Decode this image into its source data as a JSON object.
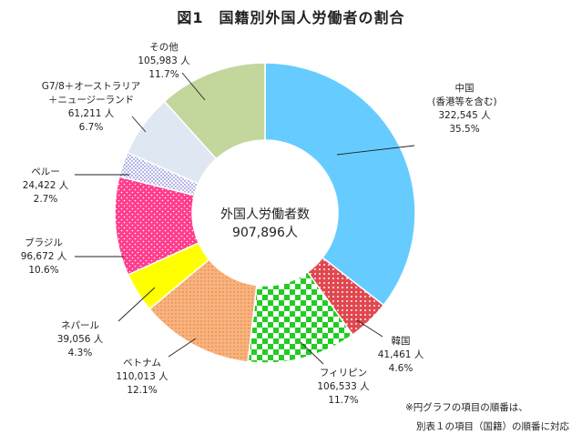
{
  "title": "図1　国籍別外国人労働者の割合",
  "center": {
    "line1": "外国人労働者数",
    "line2": "907,896人"
  },
  "notes": [
    "※円グラフの項目の順番は、",
    "別表１の項目（国籍）の順番に対応"
  ],
  "chart_data": {
    "type": "pie",
    "donut": true,
    "total": 907896,
    "slices": [
      {
        "name": "中国",
        "name2": "(香港等を含む)",
        "value": 322545,
        "value_label": "322,545 人",
        "pct": 35.5,
        "pct_label": "35.5%",
        "color": "#66ccff",
        "pattern": "solid"
      },
      {
        "name": "韓国",
        "value": 41461,
        "value_label": "41,461 人",
        "pct": 4.6,
        "pct_label": "4.6%",
        "color": "#e0484f",
        "pattern": "checks"
      },
      {
        "name": "フィリピン",
        "value": 106533,
        "value_label": "106,533 人",
        "pct": 11.7,
        "pct_label": "11.7%",
        "color": "#22cc22",
        "pattern": "checkerboard"
      },
      {
        "name": "ベトナム",
        "value": 110013,
        "value_label": "110,013 人",
        "pct": 12.1,
        "pct_label": "12.1%",
        "color": "#f9b37f",
        "pattern": "dots"
      },
      {
        "name": "ネパール",
        "value": 39056,
        "value_label": "39,056 人",
        "pct": 4.3,
        "pct_label": "4.3%",
        "color": "#ffff00",
        "pattern": "solid"
      },
      {
        "name": "ブラジル",
        "value": 96672,
        "value_label": "96,672 人",
        "pct": 10.6,
        "pct_label": "10.6%",
        "color": "#ff3d8c",
        "pattern": "dots"
      },
      {
        "name": "ペルー",
        "value": 24422,
        "value_label": "24,422 人",
        "pct": 2.7,
        "pct_label": "2.7%",
        "color": "#b8b8f0",
        "pattern": "dots"
      },
      {
        "name": "G7/8＋オーストラリア",
        "name2": "＋ニュージーランド",
        "value": 61211,
        "value_label": "61,211 人",
        "pct": 6.7,
        "pct_label": "6.7%",
        "color": "#dfe7f3",
        "pattern": "solid"
      },
      {
        "name": "その他",
        "value": 105983,
        "value_label": "105,983 人",
        "pct": 11.7,
        "pct_label": "11.7%",
        "color": "#c3d69b",
        "pattern": "solid"
      }
    ]
  }
}
